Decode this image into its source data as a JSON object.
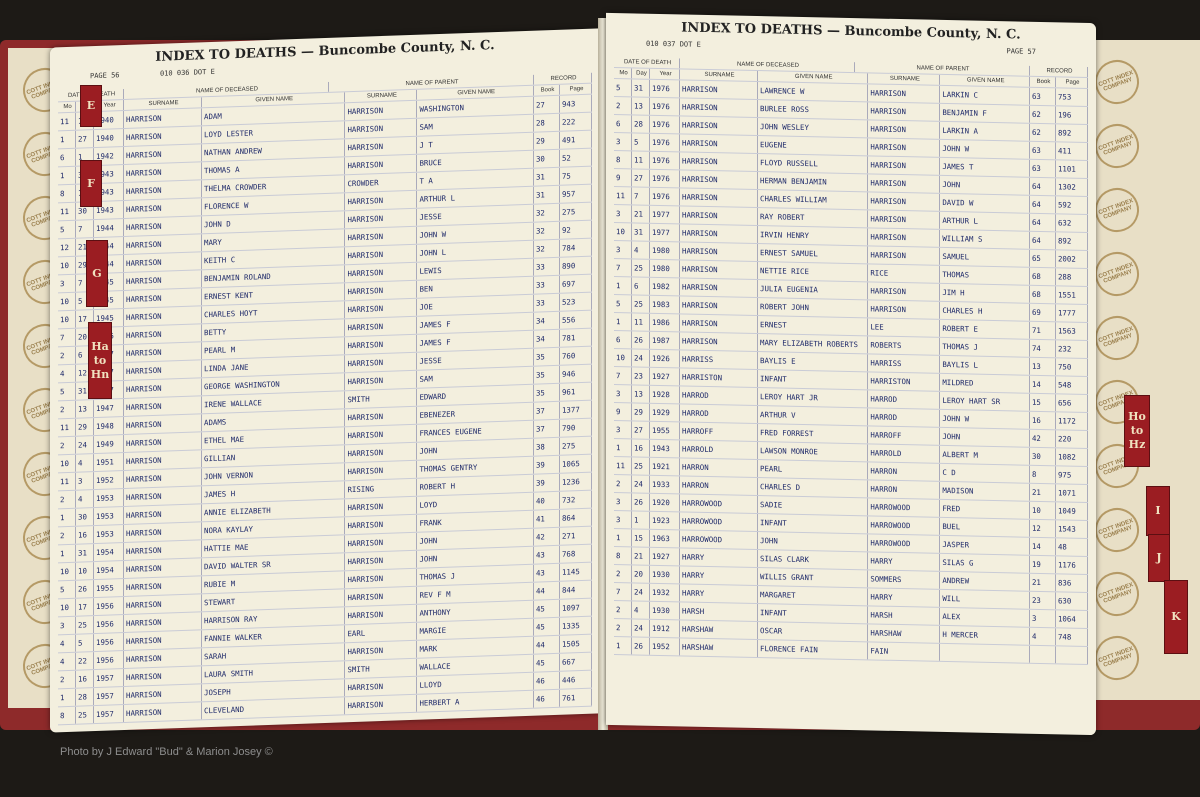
{
  "stamp_text": "COTT INDEX COMPANY",
  "tabs_left": [
    "E",
    "F",
    "G",
    "Ha to Hn"
  ],
  "tabs_right": [
    "Ho to Hz",
    "I",
    "J",
    "K"
  ],
  "credit": "Photo by J Edward \"Bud\" & Marion Josey ©",
  "columns": [
    "Mo",
    "Day",
    "Year",
    "SURNAME",
    "GIVEN NAME",
    "SURNAME",
    "GIVEN NAME",
    "Book",
    "Page"
  ],
  "column_groups": [
    "DATE OF DEATH",
    "NAME OF DECEASED",
    "NAME OF PARENT",
    "RECORD"
  ],
  "left_page": {
    "title": "INDEX TO DEATHS — Buncombe County, N. C.",
    "page_label": "PAGE 56",
    "code": "010 036 DOT E",
    "rows": [
      [
        "11",
        "18",
        "1940",
        "HARRISON",
        "ADAM",
        "HARRISON",
        "WASHINGTON",
        "27",
        "943"
      ],
      [
        "1",
        "27",
        "1940",
        "HARRISON",
        "LOYD LESTER",
        "HARRISON",
        "SAM",
        "28",
        "222"
      ],
      [
        "6",
        "1",
        "1942",
        "HARRISON",
        "NATHAN ANDREW",
        "HARRISON",
        "J T",
        "29",
        "491"
      ],
      [
        "1",
        "3",
        "1943",
        "HARRISON",
        "THOMAS A",
        "HARRISON",
        "BRUCE",
        "30",
        "52"
      ],
      [
        "8",
        "17",
        "1943",
        "HARRISON",
        "THELMA CROWDER",
        "CROWDER",
        "T A",
        "31",
        "75"
      ],
      [
        "11",
        "30",
        "1943",
        "HARRISON",
        "FLORENCE W",
        "HARRISON",
        "ARTHUR L",
        "31",
        "957"
      ],
      [
        "5",
        "7",
        "1944",
        "HARRISON",
        "JOHN D",
        "HARRISON",
        "JESSE",
        "32",
        "275"
      ],
      [
        "12",
        "21",
        "1944",
        "HARRISON",
        "MARY",
        "HARRISON",
        "JOHN W",
        "32",
        "92"
      ],
      [
        "10",
        "29",
        "1944",
        "HARRISON",
        "KEITH C",
        "HARRISON",
        "JOHN L",
        "32",
        "784"
      ],
      [
        "3",
        "7",
        "1945",
        "HARRISON",
        "BENJAMIN ROLAND",
        "HARRISON",
        "LEWIS",
        "33",
        "890"
      ],
      [
        "10",
        "5",
        "1945",
        "HARRISON",
        "ERNEST KENT",
        "HARRISON",
        "BEN",
        "33",
        "697"
      ],
      [
        "10",
        "17",
        "1945",
        "HARRISON",
        "CHARLES HOYT",
        "HARRISON",
        "JOE",
        "33",
        "523"
      ],
      [
        "7",
        "20",
        "1946",
        "HARRISON",
        "BETTY",
        "HARRISON",
        "JAMES F",
        "34",
        "556"
      ],
      [
        "2",
        "6",
        "1947",
        "HARRISON",
        "PEARL M",
        "HARRISON",
        "JAMES F",
        "34",
        "781"
      ],
      [
        "4",
        "12",
        "1947",
        "HARRISON",
        "LINDA JANE",
        "HARRISON",
        "JESSE",
        "35",
        "760"
      ],
      [
        "5",
        "31",
        "1947",
        "HARRISON",
        "GEORGE WASHINGTON",
        "HARRISON",
        "SAM",
        "35",
        "946"
      ],
      [
        "2",
        "13",
        "1947",
        "HARRISON",
        "IRENE WALLACE",
        "SMITH",
        "EDWARD",
        "35",
        "961"
      ],
      [
        "11",
        "29",
        "1948",
        "HARRISON",
        "ADAMS",
        "HARRISON",
        "EBENEZER",
        "37",
        "1377"
      ],
      [
        "2",
        "24",
        "1949",
        "HARRISON",
        "ETHEL MAE",
        "HARRISON",
        "FRANCES EUGENE",
        "37",
        "790"
      ],
      [
        "10",
        "4",
        "1951",
        "HARRISON",
        "GILLIAN",
        "HARRISON",
        "JOHN",
        "38",
        "275"
      ],
      [
        "11",
        "3",
        "1952",
        "HARRISON",
        "JOHN VERNON",
        "HARRISON",
        "THOMAS GENTRY",
        "39",
        "1065"
      ],
      [
        "2",
        "4",
        "1953",
        "HARRISON",
        "JAMES H",
        "RISING",
        "ROBERT H",
        "39",
        "1236"
      ],
      [
        "1",
        "30",
        "1953",
        "HARRISON",
        "ANNIE ELIZABETH",
        "HARRISON",
        "LOYD",
        "40",
        "732"
      ],
      [
        "2",
        "16",
        "1953",
        "HARRISON",
        "NORA KAYLAY",
        "HARRISON",
        "FRANK",
        "41",
        "864"
      ],
      [
        "1",
        "31",
        "1954",
        "HARRISON",
        "HATTIE MAE",
        "HARRISON",
        "JOHN",
        "42",
        "271"
      ],
      [
        "10",
        "10",
        "1954",
        "HARRISON",
        "DAVID WALTER SR",
        "HARRISON",
        "JOHN",
        "43",
        "768"
      ],
      [
        "5",
        "26",
        "1955",
        "HARRISON",
        "RUBIE M",
        "HARRISON",
        "THOMAS J",
        "43",
        "1145"
      ],
      [
        "10",
        "17",
        "1956",
        "HARRISON",
        "STEWART",
        "HARRISON",
        "REV F M",
        "44",
        "844"
      ],
      [
        "3",
        "25",
        "1956",
        "HARRISON",
        "HARRISON RAY",
        "HARRISON",
        "ANTHONY",
        "45",
        "1097"
      ],
      [
        "4",
        "5",
        "1956",
        "HARRISON",
        "FANNIE WALKER",
        "EARL",
        "MARGIE",
        "45",
        "1335"
      ],
      [
        "4",
        "22",
        "1956",
        "HARRISON",
        "SARAH",
        "HARRISON",
        "MARK",
        "44",
        "1505"
      ],
      [
        "2",
        "16",
        "1957",
        "HARRISON",
        "LAURA SMITH",
        "SMITH",
        "WALLACE",
        "45",
        "667"
      ],
      [
        "1",
        "28",
        "1957",
        "HARRISON",
        "JOSEPH",
        "HARRISON",
        "LLOYD",
        "46",
        "446"
      ],
      [
        "8",
        "25",
        "1957",
        "HARRISON",
        "CLEVELAND",
        "HARRISON",
        "HERBERT A",
        "46",
        "761"
      ]
    ]
  },
  "right_page": {
    "title": "INDEX TO DEATHS — Buncombe County, N. C.",
    "page_label": "PAGE 57",
    "code": "010 037 DOT E",
    "rows": [
      [
        "5",
        "31",
        "1976",
        "HARRISON",
        "LAWRENCE W",
        "HARRISON",
        "LARKIN C",
        "63",
        "753"
      ],
      [
        "2",
        "13",
        "1976",
        "HARRISON",
        "BURLEE ROSS",
        "HARRISON",
        "BENJAMIN F",
        "62",
        "196"
      ],
      [
        "6",
        "28",
        "1976",
        "HARRISON",
        "JOHN WESLEY",
        "HARRISON",
        "LARKIN A",
        "62",
        "892"
      ],
      [
        "3",
        "5",
        "1976",
        "HARRISON",
        "EUGENE",
        "HARRISON",
        "JOHN W",
        "63",
        "411"
      ],
      [
        "8",
        "11",
        "1976",
        "HARRISON",
        "FLOYD RUSSELL",
        "HARRISON",
        "JAMES T",
        "63",
        "1101"
      ],
      [
        "9",
        "27",
        "1976",
        "HARRISON",
        "HERMAN BENJAMIN",
        "HARRISON",
        "JOHN",
        "64",
        "1302"
      ],
      [
        "11",
        "7",
        "1976",
        "HARRISON",
        "CHARLES WILLIAM",
        "HARRISON",
        "DAVID W",
        "64",
        "592"
      ],
      [
        "3",
        "21",
        "1977",
        "HARRISON",
        "RAY ROBERT",
        "HARRISON",
        "ARTHUR L",
        "64",
        "632"
      ],
      [
        "10",
        "31",
        "1977",
        "HARRISON",
        "IRVIN HENRY",
        "HARRISON",
        "WILLIAM S",
        "64",
        "892"
      ],
      [
        "3",
        "4",
        "1980",
        "HARRISON",
        "ERNEST SAMUEL",
        "HARRISON",
        "SAMUEL",
        "65",
        "2002"
      ],
      [
        "7",
        "25",
        "1980",
        "HARRISON",
        "NETTIE RICE",
        "RICE",
        "THOMAS",
        "68",
        "288"
      ],
      [
        "1",
        "6",
        "1982",
        "HARRISON",
        "JULIA EUGENIA",
        "HARRISON",
        "JIM H",
        "68",
        "1551"
      ],
      [
        "5",
        "25",
        "1983",
        "HARRISON",
        "ROBERT JOHN",
        "HARRISON",
        "CHARLES H",
        "69",
        "1777"
      ],
      [
        "1",
        "11",
        "1986",
        "HARRISON",
        "ERNEST",
        "LEE",
        "ROBERT E",
        "71",
        "1563"
      ],
      [
        "6",
        "26",
        "1987",
        "HARRISON",
        "MARY ELIZABETH ROBERTS",
        "ROBERTS",
        "THOMAS J",
        "74",
        "232"
      ],
      [
        "10",
        "24",
        "1926",
        "HARRISS",
        "BAYLIS E",
        "HARRISS",
        "BAYLIS L",
        "13",
        "750"
      ],
      [
        "7",
        "23",
        "1927",
        "HARRISTON",
        "INFANT",
        "HARRISTON",
        "MILDRED",
        "14",
        "548"
      ],
      [
        "3",
        "13",
        "1928",
        "HARROD",
        "LEROY HART JR",
        "HARROD",
        "LEROY HART SR",
        "15",
        "656"
      ],
      [
        "9",
        "29",
        "1929",
        "HARROD",
        "ARTHUR V",
        "HARROD",
        "JOHN W",
        "16",
        "1172"
      ],
      [
        "3",
        "27",
        "1955",
        "HARROFF",
        "FRED FORREST",
        "HARROFF",
        "JOHN",
        "42",
        "220"
      ],
      [
        "1",
        "16",
        "1943",
        "HARROLD",
        "LAWSON MONROE",
        "HARROLD",
        "ALBERT M",
        "30",
        "1082"
      ],
      [
        "11",
        "25",
        "1921",
        "HARRON",
        "PEARL",
        "HARRON",
        "C D",
        "8",
        "975"
      ],
      [
        "2",
        "24",
        "1933",
        "HARRON",
        "CHARLES D",
        "HARRON",
        "MADISON",
        "21",
        "1071"
      ],
      [
        "3",
        "26",
        "1920",
        "HARROWOOD",
        "SADIE",
        "HARROWOOD",
        "FRED",
        "10",
        "1049"
      ],
      [
        "3",
        "1",
        "1923",
        "HARROWOOD",
        "INFANT",
        "HARROWOOD",
        "BUEL",
        "12",
        "1543"
      ],
      [
        "1",
        "15",
        "1963",
        "HARROWOOD",
        "JOHN",
        "HARROWOOD",
        "JASPER",
        "14",
        "48"
      ],
      [
        "8",
        "21",
        "1927",
        "HARRY",
        "SILAS CLARK",
        "HARRY",
        "SILAS G",
        "19",
        "1176"
      ],
      [
        "2",
        "20",
        "1930",
        "HARRY",
        "WILLIS GRANT",
        "SOMMERS",
        "ANDREW",
        "21",
        "836"
      ],
      [
        "7",
        "24",
        "1932",
        "HARRY",
        "MARGARET",
        "HARRY",
        "WILL",
        "23",
        "630"
      ],
      [
        "2",
        "4",
        "1930",
        "HARSH",
        "INFANT",
        "HARSH",
        "ALEX",
        "3",
        "1064"
      ],
      [
        "2",
        "24",
        "1912",
        "HARSHAW",
        "OSCAR",
        "HARSHAW",
        "H MERCER",
        "4",
        "748"
      ],
      [
        "1",
        "26",
        "1952",
        "HARSHAW",
        "FLORENCE FAIN",
        "FAIN",
        "",
        "",
        ""
      ]
    ]
  }
}
